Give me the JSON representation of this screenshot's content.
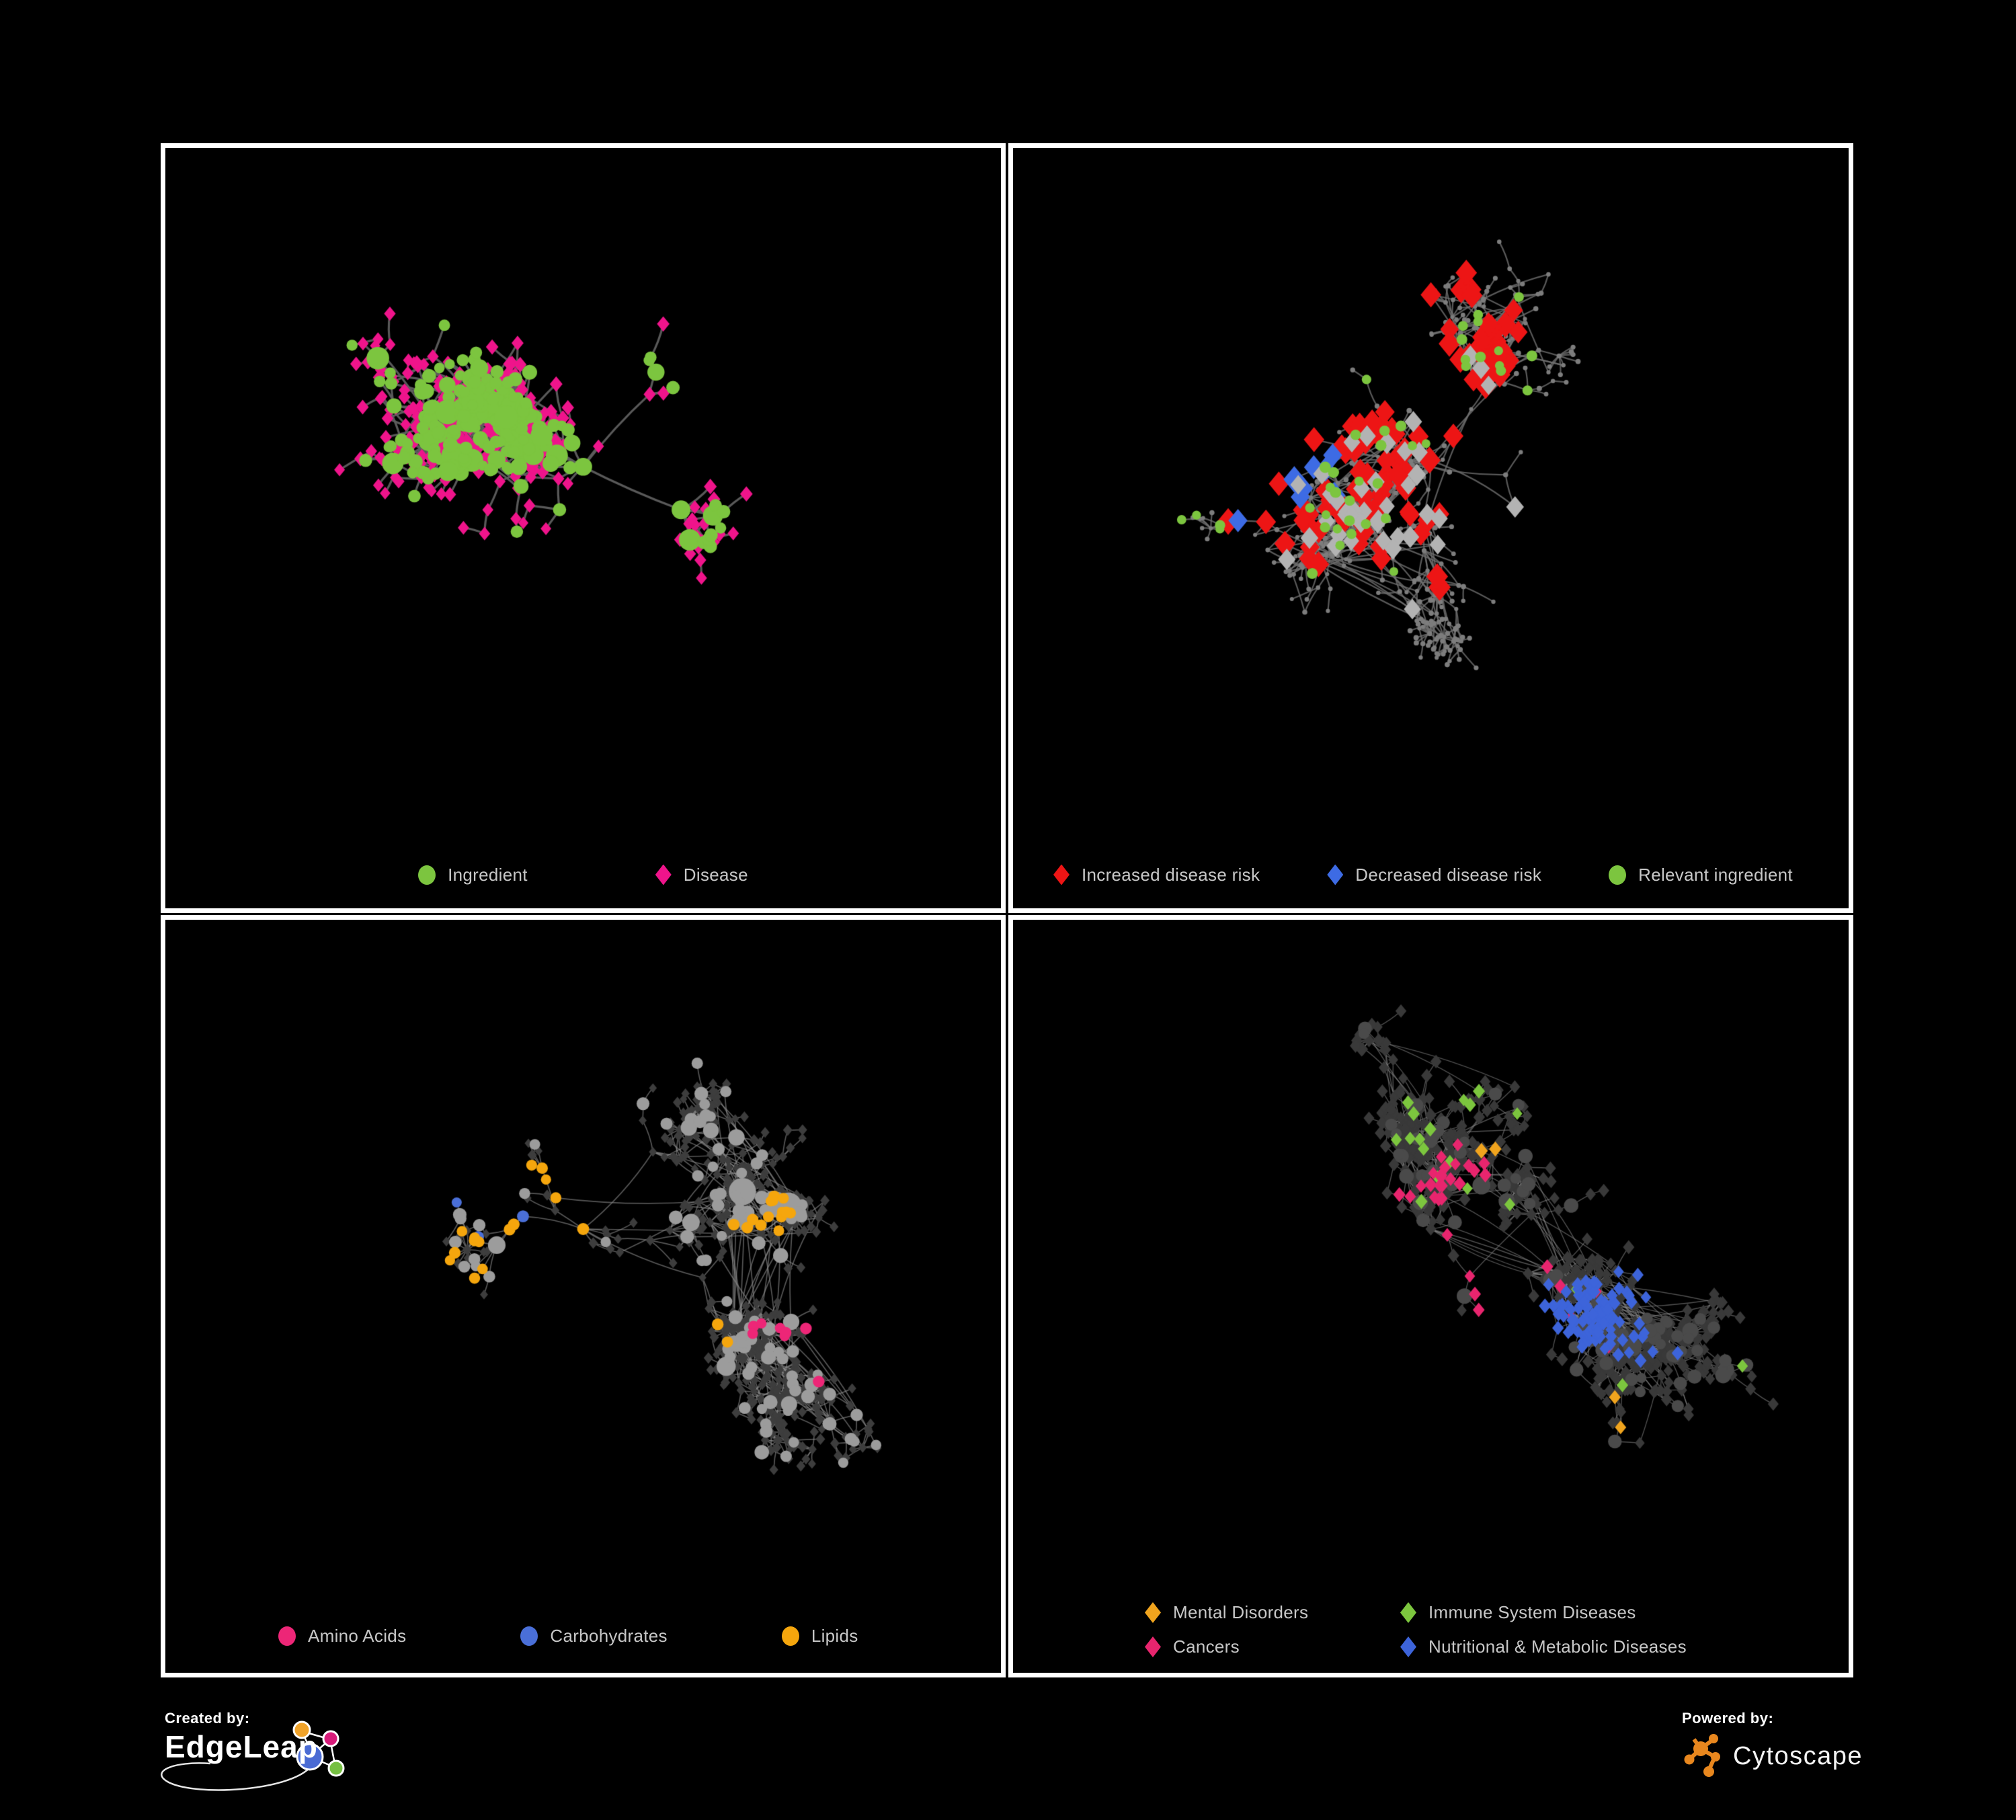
{
  "page": {
    "background": "#000000",
    "frame_color": "#ffffff",
    "legend_text_color": "#c7c7c7"
  },
  "panels": [
    {
      "id": "ingredient-disease-network",
      "legend": {
        "items": [
          {
            "label": "Ingredient",
            "color": "#7cc53f",
            "shape": "circle"
          },
          {
            "label": "Disease",
            "color": "#ef148b",
            "shape": "diamond"
          }
        ]
      },
      "network": {
        "seed": 11,
        "n": 560,
        "step": 40,
        "starP": 0.055,
        "extraEdges": 70,
        "extraDist": 190,
        "edgeColor": "#5e5e5e",
        "edgeWidth": 3.2,
        "edgeAlpha": 0.95,
        "hubClass": 1,
        "hubDeg": 6,
        "classes": [
          {
            "name": "Disease",
            "color": "#ef148b",
            "shape": "diamond",
            "size": 15,
            "jitter": 4
          },
          {
            "name": "Ingredient",
            "color": "#7cc53f",
            "shape": "circle",
            "size": 15,
            "jitter": 5,
            "p": 0.3,
            "hub": true
          }
        ]
      }
    },
    {
      "id": "disease-risk-network",
      "legend": {
        "items": [
          {
            "label": "Increased disease risk",
            "color": "#ed1515",
            "shape": "diamond"
          },
          {
            "label": "Decreased disease risk",
            "color": "#3d6be4",
            "shape": "diamond"
          },
          {
            "label": "Relevant ingredient",
            "color": "#7cc53f",
            "shape": "circle"
          }
        ]
      },
      "network": {
        "seed": 27,
        "n": 640,
        "step": 37,
        "starP": 0.06,
        "extraEdges": 150,
        "extraDist": 220,
        "edgeColor": "#6f6f6f",
        "edgeWidth": 2.2,
        "edgeAlpha": 0.8,
        "classes": [
          {
            "name": "node",
            "color": "#7d7d7d",
            "shape": "circle",
            "size": 6,
            "jitter": 2
          },
          {
            "name": "Increased disease risk",
            "color": "#ed1515",
            "shape": "diamond",
            "size": 27,
            "jitter": 6,
            "hotspots": [
              [
                0.33,
                0.33,
                0.17,
                0.38
              ],
              [
                0.46,
                0.42,
                0.15,
                0.38
              ],
              [
                0.27,
                0.46,
                0.1,
                0.3
              ],
              [
                0.57,
                0.3,
                0.09,
                0.3
              ],
              [
                0.73,
                0.74,
                0.06,
                0.55
              ],
              [
                0.62,
                0.57,
                0.05,
                0.3
              ]
            ]
          },
          {
            "name": "Decreased disease risk",
            "color": "#3d6be4",
            "shape": "diamond",
            "size": 27,
            "jitter": 5,
            "hotspots": [
              [
                0.9,
                0.37,
                0.05,
                0.85
              ],
              [
                0.33,
                0.44,
                0.05,
                0.3
              ],
              [
                0.3,
                0.52,
                0.03,
                0.4
              ]
            ]
          },
          {
            "name": "neutral",
            "color": "#b3b3b3",
            "shape": "diamond",
            "size": 23,
            "jitter": 4,
            "hotspots": [
              [
                0.33,
                0.38,
                0.13,
                0.17
              ],
              [
                0.55,
                0.44,
                0.12,
                0.15
              ],
              [
                0.43,
                0.55,
                0.1,
                0.12
              ]
            ]
          },
          {
            "name": "Relevant ingredient",
            "color": "#7cc53f",
            "shape": "circle",
            "size": 13,
            "jitter": 4,
            "hotspots": [
              [
                0.33,
                0.4,
                0.13,
                0.45
              ],
              [
                0.47,
                0.36,
                0.11,
                0.4
              ],
              [
                0.14,
                0.4,
                0.04,
                0.5
              ],
              [
                0.88,
                0.53,
                0.04,
                0.6
              ],
              [
                0.25,
                0.52,
                0.07,
                0.3
              ]
            ]
          }
        ]
      }
    },
    {
      "id": "nutrient-class-network",
      "legend": {
        "items": [
          {
            "label": "Amino Acids",
            "color": "#ed2677",
            "shape": "circle"
          },
          {
            "label": "Carbohydrates",
            "color": "#4a6fd8",
            "shape": "circle"
          },
          {
            "label": "Lipids",
            "color": "#f5a60d",
            "shape": "circle"
          }
        ]
      },
      "network": {
        "seed": 39,
        "n": 660,
        "step": 36,
        "starP": 0.05,
        "extraEdges": 170,
        "extraDist": 230,
        "edgeColor": "#8f8f8f",
        "edgeWidth": 1.7,
        "edgeAlpha": 0.6,
        "classes": [
          {
            "name": "other",
            "color": "#3d3d3d",
            "shape": "diamond",
            "size": 11,
            "jitter": 3
          },
          {
            "name": "node",
            "color": "#9c9c9c",
            "shape": "circle",
            "size": 15,
            "jitter": 4,
            "p": 0.15,
            "hub": true
          },
          {
            "name": "Amino Acids",
            "color": "#ed2677",
            "shape": "circle",
            "size": 15,
            "jitter": 3,
            "hotspots": [
              [
                0.12,
                0.42,
                0.05,
                0.6
              ],
              [
                0.23,
                0.86,
                0.05,
                0.6
              ],
              [
                0.5,
                0.73,
                0.06,
                0.5
              ],
              [
                0.65,
                0.86,
                0.04,
                0.6
              ],
              [
                0.9,
                0.33,
                0.05,
                0.6
              ],
              [
                0.35,
                0.14,
                0.03,
                0.5
              ],
              [
                0.76,
                0.63,
                0.04,
                0.5
              ],
              [
                0.96,
                0.7,
                0.03,
                0.7
              ],
              [
                0.42,
                0.02,
                0.03,
                0.8
              ],
              [
                0.05,
                0.6,
                0.03,
                0.5
              ]
            ]
          },
          {
            "name": "Carbohydrates",
            "color": "#4a6fd8",
            "shape": "circle",
            "size": 15,
            "jitter": 3,
            "hotspots": [
              [
                0.38,
                0.42,
                0.05,
                0.35
              ],
              [
                0.33,
                0.25,
                0.04,
                0.3
              ],
              [
                0.48,
                0.6,
                0.03,
                0.35
              ],
              [
                0.03,
                0.27,
                0.025,
                0.8
              ],
              [
                0.82,
                0.6,
                0.025,
                0.6
              ]
            ]
          },
          {
            "name": "Lipids",
            "color": "#f5a60d",
            "shape": "circle",
            "size": 15,
            "jitter": 3,
            "hotspots": [
              [
                0.42,
                0.4,
                0.09,
                0.8
              ],
              [
                0.34,
                0.52,
                0.08,
                0.55
              ],
              [
                0.3,
                0.14,
                0.07,
                0.5
              ],
              [
                0.5,
                0.63,
                0.05,
                0.55
              ],
              [
                0.26,
                0.66,
                0.05,
                0.5
              ],
              [
                0.6,
                0.6,
                0.05,
                0.4
              ],
              [
                0.2,
                0.3,
                0.05,
                0.3
              ],
              [
                0.65,
                0.18,
                0.03,
                0.45
              ],
              [
                0.45,
                0.9,
                0.03,
                0.5
              ],
              [
                0.73,
                0.45,
                0.04,
                0.4
              ]
            ]
          }
        ]
      }
    },
    {
      "id": "disease-class-network",
      "legend": {
        "items": [
          {
            "label": "Mental Disorders",
            "color": "#f0a41e",
            "shape": "diamond"
          },
          {
            "label": "Immune System Diseases",
            "color": "#7cc63e",
            "shape": "diamond"
          },
          {
            "label": "Cancers",
            "color": "#e8256e",
            "shape": "diamond"
          },
          {
            "label": "Nutritional & Metabolic Diseases",
            "color": "#3d64da",
            "shape": "diamond"
          }
        ]
      },
      "network": {
        "seed": 53,
        "n": 800,
        "step": 34,
        "starP": 0.05,
        "extraEdges": 240,
        "extraDist": 230,
        "edgeColor": "#8f8f8f",
        "edgeWidth": 1.4,
        "edgeAlpha": 0.55,
        "classes": [
          {
            "name": "other",
            "color": "#393939",
            "shape": "diamond",
            "size": 14,
            "jitter": 3
          },
          {
            "name": "node",
            "color": "#4a4a4a",
            "shape": "circle",
            "size": 15,
            "jitter": 4,
            "p": 0.1,
            "hub": true
          },
          {
            "name": "Mental Disorders",
            "color": "#f0a41e",
            "shape": "diamond",
            "size": 16,
            "jitter": 3,
            "hotspots": [
              [
                0.16,
                0.47,
                0.09,
                0.92
              ],
              [
                0.11,
                0.53,
                0.07,
                0.9
              ],
              [
                0.24,
                0.42,
                0.06,
                0.5
              ],
              [
                0.13,
                0.12,
                0.04,
                0.55
              ],
              [
                0.3,
                0.07,
                0.03,
                0.5
              ],
              [
                0.56,
                0.33,
                0.03,
                0.3
              ],
              [
                0.75,
                0.73,
                0.025,
                0.6
              ],
              [
                0.35,
                0.76,
                0.03,
                0.4
              ],
              [
                0.48,
                0.65,
                0.02,
                0.4
              ]
            ]
          },
          {
            "name": "Immune System Diseases",
            "color": "#7cc63e",
            "shape": "diamond",
            "size": 15,
            "jitter": 3,
            "p": 0.008,
            "hotspots": [
              [
                0.45,
                0.3,
                0.25,
                0.05
              ]
            ]
          },
          {
            "name": "Cancers",
            "color": "#e8256e",
            "shape": "diamond",
            "size": 15,
            "jitter": 3,
            "hotspots": [
              [
                0.47,
                0.53,
                0.08,
                0.8
              ],
              [
                0.55,
                0.58,
                0.07,
                0.7
              ],
              [
                0.42,
                0.45,
                0.06,
                0.5
              ],
              [
                0.93,
                0.22,
                0.05,
                0.8
              ],
              [
                0.6,
                0.2,
                0.04,
                0.4
              ],
              [
                0.3,
                0.6,
                0.03,
                0.4
              ],
              [
                0.64,
                0.9,
                0.025,
                0.7
              ],
              [
                0.2,
                0.25,
                0.02,
                0.45
              ],
              [
                0.52,
                0.4,
                0.05,
                0.4
              ]
            ]
          },
          {
            "name": "Nutritional & Metabolic Diseases",
            "color": "#3d64da",
            "shape": "diamond",
            "size": 15,
            "jitter": 3,
            "hotspots": [
              [
                0.68,
                0.6,
                0.055,
                0.85
              ],
              [
                0.73,
                0.55,
                0.05,
                0.7
              ],
              [
                0.85,
                0.3,
                0.07,
                0.6
              ],
              [
                0.8,
                0.14,
                0.05,
                0.6
              ],
              [
                0.62,
                0.07,
                0.05,
                0.5
              ],
              [
                0.1,
                0.07,
                0.05,
                0.55
              ],
              [
                0.55,
                0.76,
                0.04,
                0.4
              ],
              [
                0.79,
                0.45,
                0.04,
                0.5
              ],
              [
                0.35,
                0.35,
                0.03,
                0.3
              ],
              [
                0.9,
                0.56,
                0.03,
                0.6
              ],
              [
                0.46,
                0.96,
                0.03,
                0.5
              ],
              [
                0.12,
                0.76,
                0.03,
                0.45
              ],
              [
                0.25,
                0.18,
                0.03,
                0.4
              ]
            ]
          }
        ]
      }
    }
  ],
  "footer": {
    "created_by": {
      "label": "Created by:",
      "brand": "EdgeLeap",
      "logo_colors": {
        "blue": "#4a6bd4",
        "yellow": "#f0a32a",
        "pink": "#d81b7a",
        "green": "#76c043",
        "stroke": "#ffffff"
      }
    },
    "powered_by": {
      "label": "Powered by:",
      "brand": "Cytoscape",
      "logo_color": "#e8871e"
    }
  }
}
